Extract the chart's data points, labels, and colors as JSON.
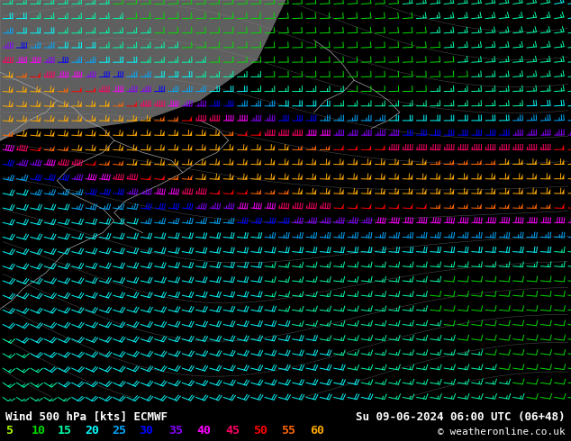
{
  "title_left": "Wind 500 hPa [kts] ECMWF",
  "title_right": "Su 09-06-2024 06:00 UTC (06+48)",
  "copyright": "© weatheronline.co.uk",
  "legend_values": [
    5,
    10,
    15,
    20,
    25,
    30,
    35,
    40,
    45,
    50,
    55,
    60
  ],
  "legend_colors": [
    "#aaff00",
    "#00dd00",
    "#00ffaa",
    "#00ffff",
    "#00aaff",
    "#0000ff",
    "#8800ff",
    "#ff00ff",
    "#ff0066",
    "#ff0000",
    "#ff6600",
    "#ffaa00"
  ],
  "background_color": "#ccffcc",
  "fig_width": 6.34,
  "fig_height": 4.9,
  "dpi": 100
}
